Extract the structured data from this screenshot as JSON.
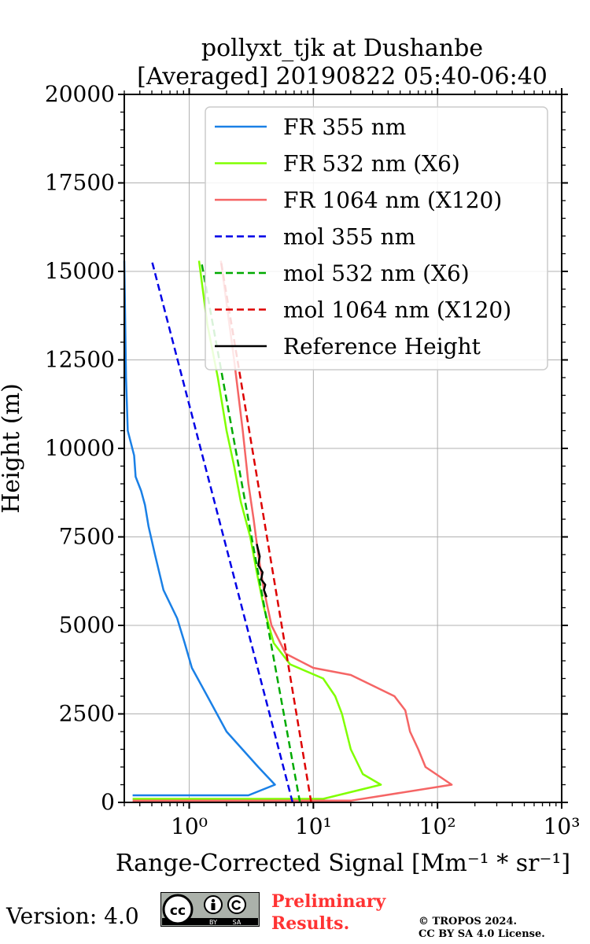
{
  "chart_data": {
    "type": "line",
    "title": [
      "pollyxt_tjk at Dushanbe",
      "[Averaged] 20190822 05:40-06:40"
    ],
    "xlabel": "Range-Corrected Signal [Mm⁻¹ * sr⁻¹]",
    "ylabel": "Height (m)",
    "xscale": "log",
    "xlim": [
      0.3,
      1000
    ],
    "ylim": [
      0,
      20000
    ],
    "xticks": [
      "10⁰",
      "10¹",
      "10²",
      "10³"
    ],
    "yticks": [
      "0",
      "2500",
      "5000",
      "7500",
      "10000",
      "12500",
      "15000",
      "17500",
      "20000"
    ],
    "grid": true,
    "legend_position": "upper right",
    "series": [
      {
        "name": "FR 355 nm",
        "color": "#1a80e6",
        "style": "solid",
        "x": [
          0.35,
          3.0,
          4.9,
          3.6,
          2.0,
          1.4,
          1.05,
          0.92,
          0.8,
          0.62,
          0.53,
          0.47,
          0.44,
          0.41,
          0.37,
          0.36,
          0.32,
          0.31,
          0.3
        ],
        "y": [
          200,
          200,
          500,
          1000,
          2000,
          3000,
          3800,
          4500,
          5200,
          6000,
          7000,
          7800,
          8400,
          8800,
          9200,
          9800,
          10500,
          12000,
          15300
        ]
      },
      {
        "name": "FR 532 nm (X6)",
        "color": "#80ff00",
        "style": "solid",
        "x": [
          0.35,
          12,
          35,
          25,
          20,
          17,
          15,
          12,
          6.5,
          4.8,
          4.0,
          3.5,
          3.1,
          2.6,
          2.3,
          2.0,
          1.7,
          1.4,
          1.2
        ],
        "y": [
          100,
          100,
          500,
          800,
          1500,
          2500,
          3000,
          3500,
          3900,
          4500,
          5500,
          6500,
          7500,
          8500,
          9500,
          10500,
          12000,
          13500,
          15300
        ]
      },
      {
        "name": "FR 1064 nm (X120)",
        "color": "#f56565",
        "style": "solid",
        "x": [
          0.35,
          20,
          130,
          80,
          70,
          60,
          55,
          45,
          30,
          20,
          10,
          6.0,
          4.6,
          4.0,
          3.6,
          3.3,
          3.0,
          2.7,
          2.3,
          1.8
        ],
        "y": [
          50,
          50,
          500,
          1000,
          1500,
          2000,
          2600,
          3000,
          3300,
          3600,
          3800,
          4200,
          5000,
          6000,
          7000,
          8000,
          9000,
          10500,
          12500,
          15300
        ]
      },
      {
        "name": "mol 355 nm",
        "color": "#0000e6",
        "style": "dashed",
        "x": [
          6.8,
          0.5
        ],
        "y": [
          0,
          15300
        ]
      },
      {
        "name": "mol 532 nm (X6)",
        "color": "#00aa00",
        "style": "dashed",
        "x": [
          7.8,
          1.25
        ],
        "y": [
          0,
          15300
        ]
      },
      {
        "name": "mol 1064 nm (X120)",
        "color": "#dd0000",
        "style": "dashed",
        "x": [
          9.6,
          1.8
        ],
        "y": [
          0,
          15300
        ]
      },
      {
        "name": "Reference Height",
        "color": "#000000",
        "style": "solid",
        "x": [
          3.5,
          3.7,
          3.6,
          3.9,
          3.8,
          4.1,
          4.0,
          4.2
        ],
        "y": [
          7300,
          6950,
          6700,
          6500,
          6300,
          6150,
          6000,
          5800
        ]
      }
    ]
  },
  "footer": {
    "version": "Version: 4.0",
    "cc_label": "cc",
    "cc_by": "BY",
    "cc_sa": "SA",
    "preliminary": [
      "Preliminary",
      "Results."
    ],
    "copyright": [
      "© TROPOS 2024.",
      "CC BY SA 4.0 License."
    ]
  }
}
